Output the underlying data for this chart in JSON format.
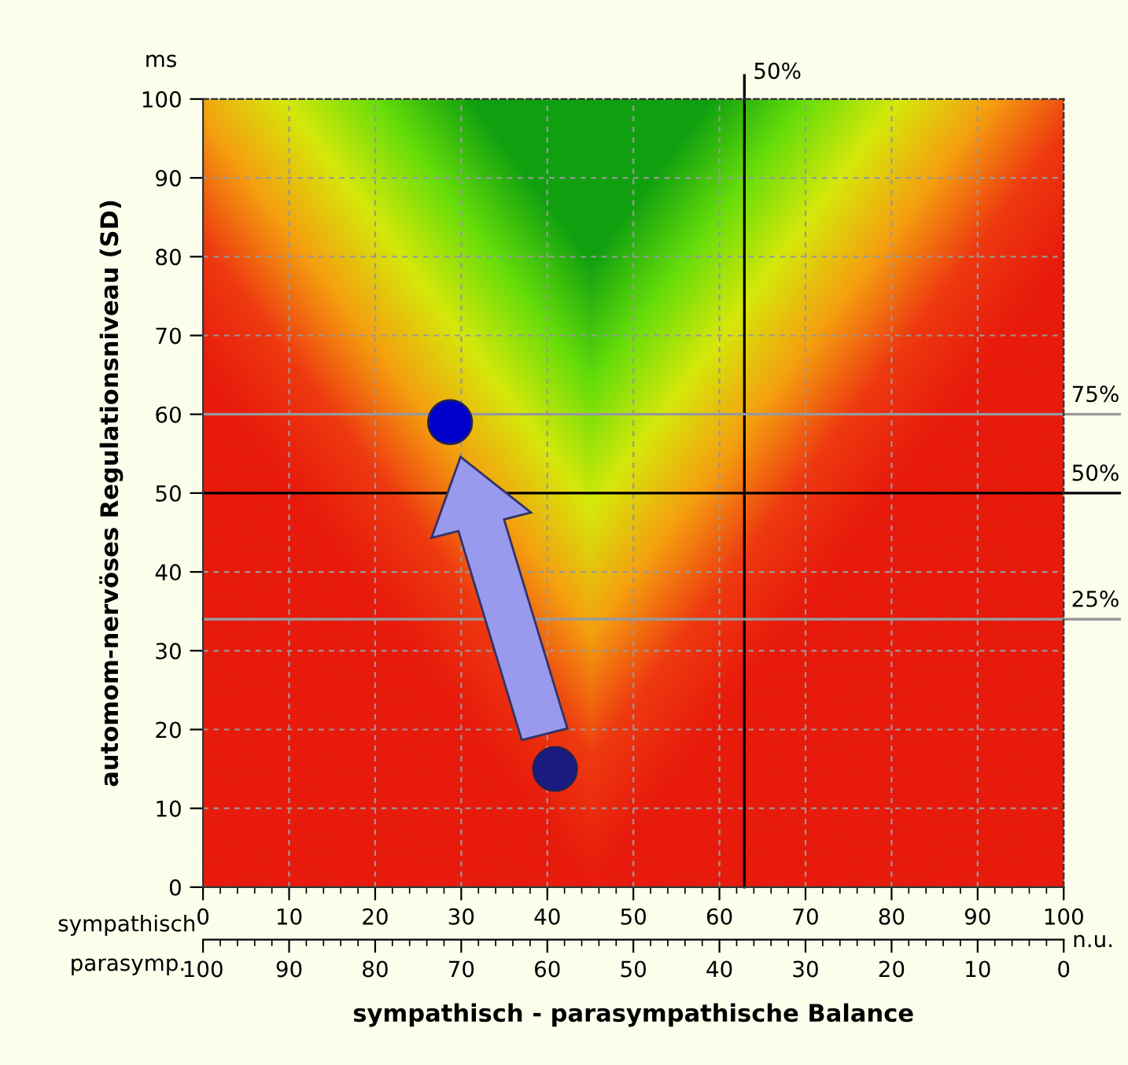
{
  "chart_data": {
    "type": "scatter",
    "xlabel": "sympathisch - parasympathische Balance",
    "ylabel": "automom-nervöses Regulationsniveau (SD)",
    "x": [
      28.7,
      40.9
    ],
    "values": [
      59,
      15
    ],
    "colors": [
      "#0000cc",
      "#1a1a80"
    ],
    "marker": "circle",
    "xlim": [
      0,
      100
    ],
    "xticks": [
      0,
      10,
      20,
      30,
      40,
      50,
      60,
      70,
      80,
      90,
      100
    ],
    "x2lim": [
      100,
      0
    ],
    "x2ticks": [
      100,
      90,
      80,
      70,
      60,
      50,
      40,
      30,
      20,
      10,
      0
    ],
    "ylim": [
      0,
      100
    ],
    "yticks": [
      0,
      10,
      20,
      30,
      40,
      50,
      60,
      70,
      80,
      90,
      100
    ],
    "grid": true,
    "ref_lines": [
      {
        "axis": "x",
        "value": 62.9,
        "color": "#000000"
      },
      {
        "axis": "y",
        "value": 50,
        "color": "#000000"
      },
      {
        "axis": "y",
        "value": 60,
        "color": "#999999"
      },
      {
        "axis": "y",
        "value": 34,
        "color": "#999999"
      }
    ],
    "annotations": [
      "ms",
      "sympathisch",
      "parasymp.",
      "n.u.",
      {
        "text": "50%",
        "x": 62.9
      },
      {
        "text": "75%",
        "y": 60
      },
      {
        "text": "50%",
        "y": 50
      },
      {
        "text": "25%",
        "y": 34
      }
    ]
  }
}
